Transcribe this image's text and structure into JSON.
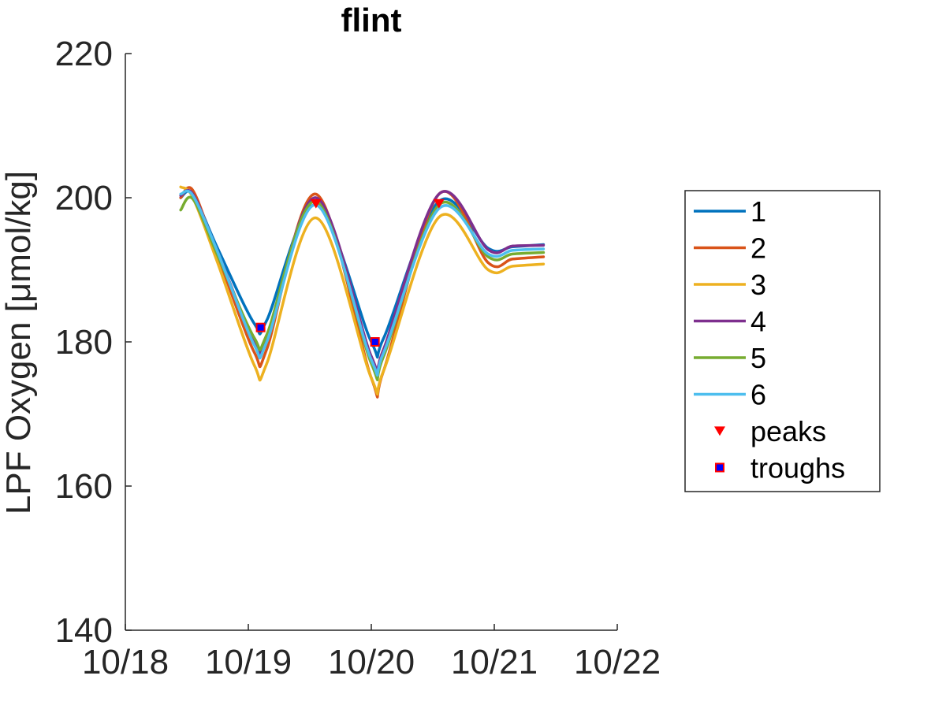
{
  "chart_data": {
    "type": "line",
    "title": "flint",
    "xlabel": "",
    "ylabel": "LPF Oxygen [μmol/kg]",
    "x_range_days": [
      0,
      4
    ],
    "x_ticks": [
      "10/18",
      "10/19",
      "10/20",
      "10/21",
      "10/22"
    ],
    "ylim": [
      140,
      220
    ],
    "y_ticks": [
      140,
      160,
      180,
      200,
      220
    ],
    "grid": false,
    "legend_position": "right",
    "x_tick_values": [
      0,
      1,
      2,
      3,
      4
    ],
    "series": [
      {
        "name": "1",
        "color": "#0072BD",
        "x": [
          0.45,
          0.55,
          0.75,
          1.05,
          1.15,
          1.55,
          2.0,
          2.1,
          2.55,
          2.95,
          3.15,
          3.4
        ],
        "y": [
          200,
          200.5,
          193,
          182.5,
          183,
          199,
          180,
          180.5,
          199.5,
          193,
          193.2,
          193.5
        ]
      },
      {
        "name": "2",
        "color": "#D95319",
        "x": [
          0.45,
          0.55,
          0.75,
          1.05,
          1.15,
          1.55,
          2.0,
          2.1,
          2.55,
          2.95,
          3.15,
          3.4
        ],
        "y": [
          200,
          201,
          192,
          178.5,
          179,
          200.5,
          175,
          176,
          200.5,
          191,
          191.5,
          191.8
        ]
      },
      {
        "name": "3",
        "color": "#EDB120",
        "x": [
          0.45,
          0.55,
          0.75,
          1.05,
          1.15,
          1.55,
          2.0,
          2.1,
          2.55,
          2.95,
          3.15,
          3.4
        ],
        "y": [
          201.5,
          200,
          191,
          176.7,
          177,
          197.2,
          175,
          176,
          197.3,
          190,
          190.5,
          190.8
        ]
      },
      {
        "name": "4",
        "color": "#7E2F8E",
        "x": [
          0.45,
          0.55,
          0.75,
          1.05,
          1.15,
          1.55,
          2.0,
          2.1,
          2.55,
          2.95,
          3.15,
          3.4
        ],
        "y": [
          200.3,
          200.5,
          192.5,
          180,
          180.5,
          200,
          178,
          179,
          200.5,
          192.8,
          193.3,
          193.4
        ]
      },
      {
        "name": "5",
        "color": "#77AC30",
        "x": [
          0.45,
          0.55,
          0.75,
          1.05,
          1.15,
          1.55,
          2.0,
          2.1,
          2.55,
          2.95,
          3.15,
          3.4
        ],
        "y": [
          198.3,
          199.8,
          192,
          180.5,
          181,
          199.5,
          177,
          178,
          199,
          191.8,
          192.2,
          192.4
        ]
      },
      {
        "name": "6",
        "color": "#4DBEEE",
        "x": [
          0.45,
          0.55,
          0.75,
          1.05,
          1.15,
          1.55,
          2.0,
          2.1,
          2.55,
          2.95,
          3.15,
          3.4
        ],
        "y": [
          200.5,
          200.3,
          192.5,
          179.5,
          180,
          199,
          177.5,
          178.5,
          198.5,
          192.2,
          192.7,
          192.9
        ]
      }
    ],
    "peaks": {
      "name": "peaks",
      "color": "#FF0000",
      "marker": "triangle-down",
      "x": [
        1.55,
        2.55
      ],
      "y": [
        199.2,
        199.2
      ]
    },
    "troughs": {
      "name": "troughs",
      "color": "#FF0000",
      "fill": "#0000FF",
      "marker": "square",
      "x": [
        1.1,
        2.03
      ],
      "y": [
        182,
        180
      ]
    }
  }
}
